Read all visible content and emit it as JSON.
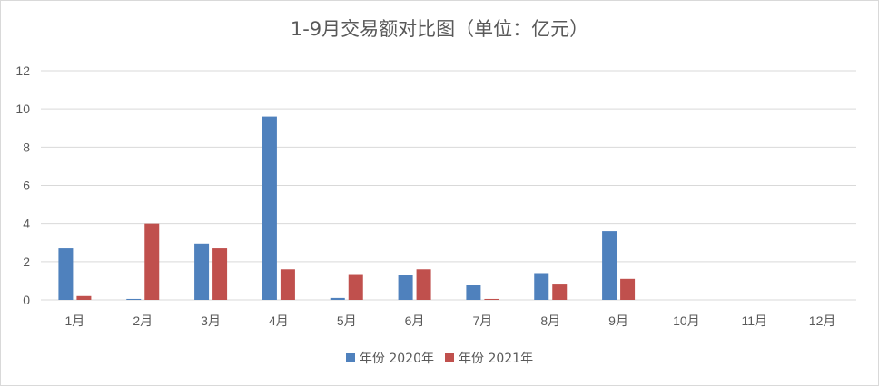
{
  "chart_data": {
    "type": "bar",
    "title": "1-9月交易额对比图（单位：亿元）",
    "xlabel": "",
    "ylabel": "",
    "categories": [
      "1月",
      "2月",
      "3月",
      "4月",
      "5月",
      "6月",
      "7月",
      "8月",
      "9月",
      "10月",
      "11月",
      "12月"
    ],
    "series": [
      {
        "name": "年份 2020年",
        "color": "#4f81bd",
        "values": [
          2.7,
          0.05,
          2.95,
          9.6,
          0.1,
          1.3,
          0.8,
          1.4,
          3.6,
          0,
          0,
          0
        ]
      },
      {
        "name": "年份 2021年",
        "color": "#c0504d",
        "values": [
          0.2,
          4.0,
          2.7,
          1.6,
          1.35,
          1.6,
          0.05,
          0.85,
          1.1,
          0,
          0,
          0
        ]
      }
    ],
    "ylim": [
      0,
      12
    ],
    "yticks": [
      0,
      2,
      4,
      6,
      8,
      10,
      12
    ],
    "grid": true,
    "legend": "bottom"
  }
}
